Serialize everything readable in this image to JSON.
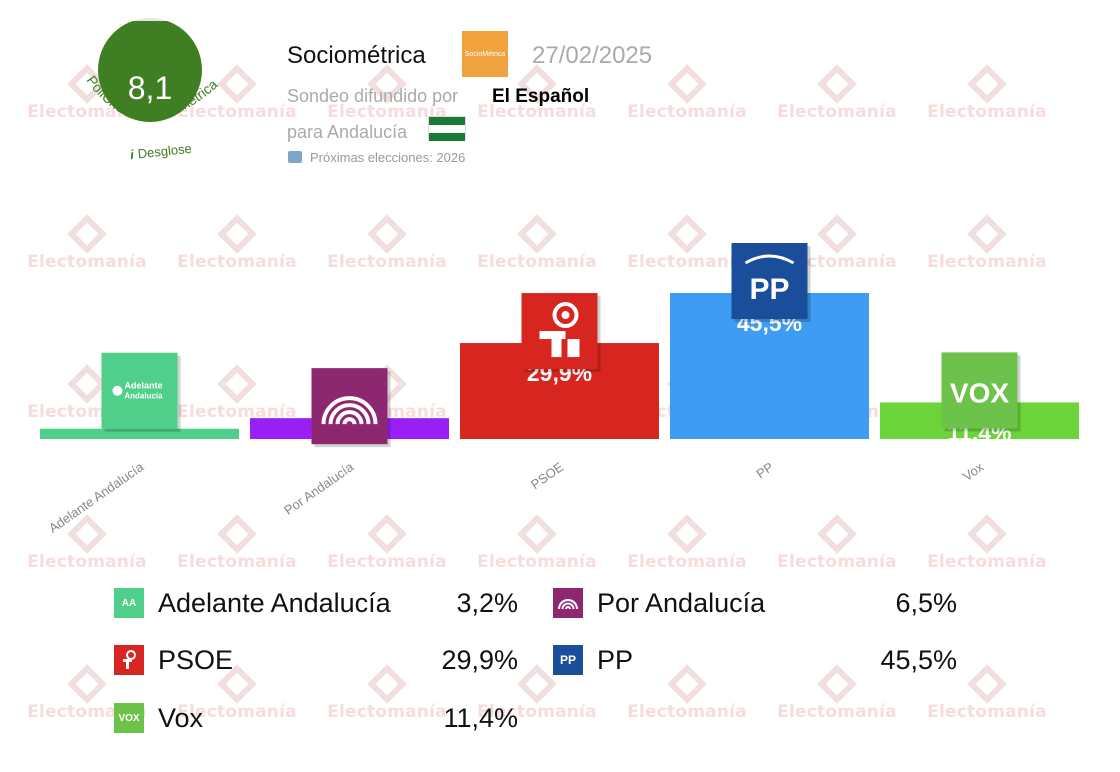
{
  "score_badge": {
    "score": "8,1",
    "arc_text": "PollCheck - Sociométrica",
    "breakdown_icon": "i",
    "breakdown_label": "Desglose",
    "color": "#3f7e22"
  },
  "header": {
    "pollster": "Sociométrica",
    "pollster_logo_text": "SocioMétrica",
    "date": "27/02/2025",
    "sponsor_prefix": "Sondeo difundido por",
    "sponsor": "El Español",
    "region_label": "para Andalucía",
    "region_flag_icon": "andalusia-flag-icon",
    "next_elections_icon": "ballot-box-icon",
    "next_elections": "Próximas elecciones: 2026"
  },
  "watermark": "Electomanía",
  "chart_data": {
    "type": "bar",
    "title": "",
    "xlabel": "",
    "ylabel": "",
    "ylim": [
      0,
      45.5
    ],
    "categories": [
      "Adelante Andalucía",
      "Por Andalucía",
      "PSOE",
      "PP",
      "Vox"
    ],
    "values": [
      3.2,
      6.5,
      29.9,
      45.5,
      11.4
    ],
    "value_labels": [
      "3,2%",
      "6,5%",
      "29,9%",
      "45,5%",
      "11,4%"
    ],
    "colors": [
      "#4fcf8a",
      "#9a1ff5",
      "#d6261f",
      "#3e9cf4",
      "#6cd43a"
    ],
    "logos": [
      {
        "icon": "adelante-andalucia-logo-icon",
        "text": "Adelante Andalucía",
        "bg": "#4fcf8a"
      },
      {
        "icon": "por-andalucia-logo-icon",
        "text": "",
        "bg": "#8d2870"
      },
      {
        "icon": "psoe-rose-logo-icon",
        "text": "",
        "bg": "#d6261f"
      },
      {
        "icon": "pp-logo-icon",
        "text": "PP",
        "bg": "#1b4e9a"
      },
      {
        "icon": "vox-logo-icon",
        "text": "VOX",
        "bg": "#6cc24a"
      }
    ]
  },
  "legend": [
    {
      "name": "Adelante Andalucía",
      "value": "3,2%",
      "icon": "adelante-andalucia-logo-icon",
      "color": "#4fcf8a",
      "swatch_text": "AA"
    },
    {
      "name": "Por Andalucía",
      "value": "6,5%",
      "icon": "por-andalucia-logo-icon",
      "color": "#8d2870",
      "swatch_text": ""
    },
    {
      "name": "PSOE",
      "value": "29,9%",
      "icon": "psoe-rose-logo-icon",
      "color": "#d6261f",
      "swatch_text": ""
    },
    {
      "name": "PP",
      "value": "45,5%",
      "icon": "pp-logo-icon",
      "color": "#1b4e9a",
      "swatch_text": "PP"
    },
    {
      "name": "Vox",
      "value": "11,4%",
      "icon": "vox-logo-icon",
      "color": "#6cc24a",
      "swatch_text": "VOX"
    }
  ]
}
